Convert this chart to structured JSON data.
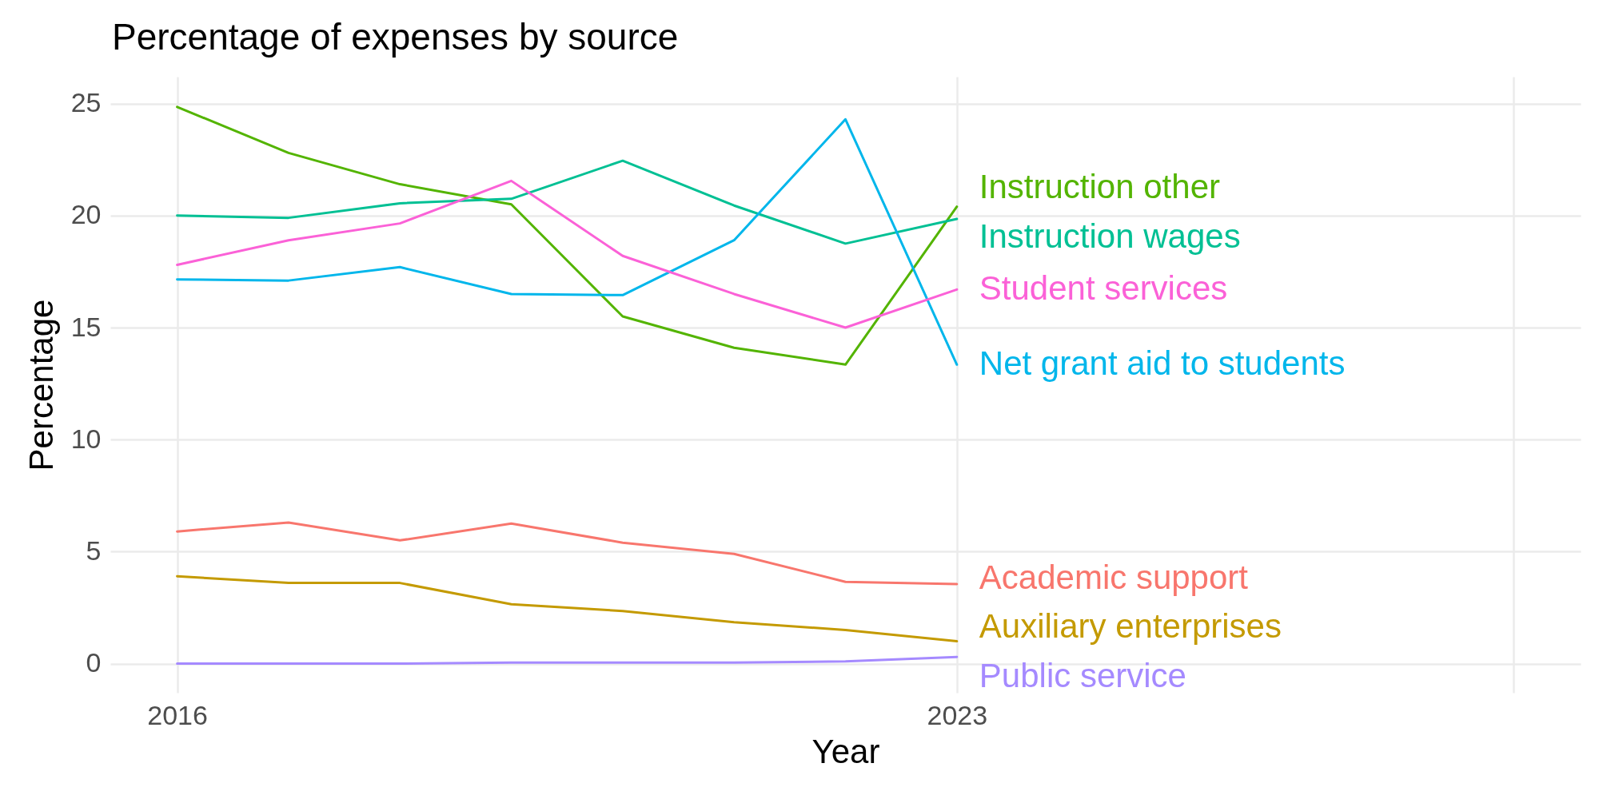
{
  "chart_data": {
    "type": "line",
    "title": "Percentage of expenses by source",
    "xlabel": "Year",
    "ylabel": "Percentage",
    "x": [
      2016,
      2017,
      2018,
      2019,
      2020,
      2021,
      2022,
      2023
    ],
    "series": [
      {
        "name": "Academic support",
        "color": "#f8766d",
        "values": [
          5.9,
          6.3,
          5.5,
          6.25,
          5.4,
          4.9,
          3.65,
          3.55
        ]
      },
      {
        "name": "Auxiliary enterprises",
        "color": "#c49a00",
        "values": [
          3.9,
          3.6,
          3.6,
          2.65,
          2.35,
          1.85,
          1.5,
          1.0
        ]
      },
      {
        "name": "Instruction other",
        "color": "#53b400",
        "values": [
          24.85,
          22.8,
          21.4,
          20.5,
          15.5,
          14.1,
          13.35,
          20.4
        ]
      },
      {
        "name": "Instruction wages",
        "color": "#00c094",
        "values": [
          20.0,
          19.9,
          20.55,
          20.75,
          22.45,
          20.45,
          18.75,
          19.85
        ]
      },
      {
        "name": "Net grant aid to students",
        "color": "#00b6eb",
        "values": [
          17.15,
          17.1,
          17.7,
          16.5,
          16.45,
          18.9,
          24.3,
          13.35
        ]
      },
      {
        "name": "Public service",
        "color": "#a58aff",
        "values": [
          0.0,
          0.0,
          0.0,
          0.05,
          0.05,
          0.05,
          0.1,
          0.3
        ]
      },
      {
        "name": "Student services",
        "color": "#fb61d7",
        "values": [
          17.8,
          18.9,
          19.65,
          21.55,
          18.2,
          16.5,
          15.0,
          16.7
        ]
      }
    ],
    "xlim": [
      2015.4,
      2028.6
    ],
    "xticks": [
      2016,
      2023,
      {
        "value": 2028,
        "label": null
      }
    ],
    "ylim": [
      -1.3,
      26.2
    ],
    "yticks": [
      0,
      5,
      10,
      15,
      20,
      25
    ],
    "grid": true,
    "legend": false,
    "marker": "none",
    "line_style": "solid"
  }
}
